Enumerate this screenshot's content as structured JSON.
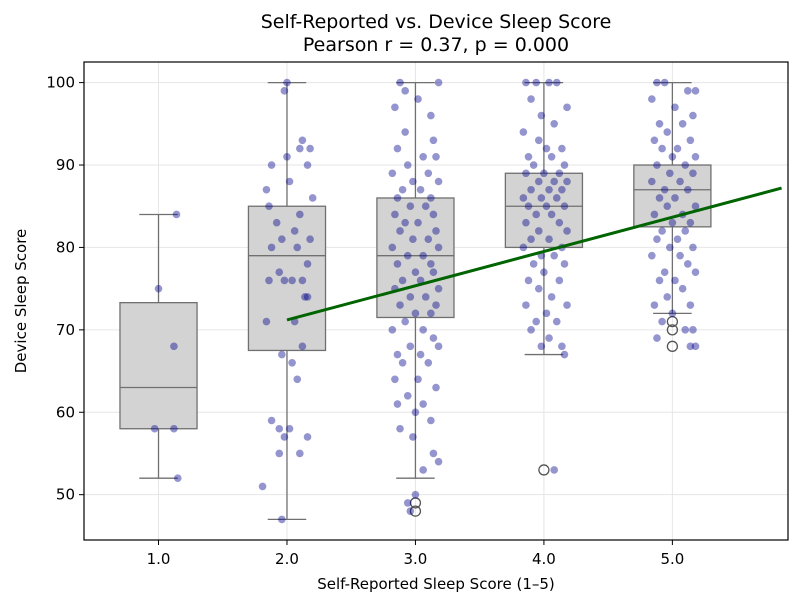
{
  "chart_data": {
    "type": "box",
    "title": "Self-Reported vs. Device Sleep Score",
    "subtitle": "Pearson r = 0.37, p = 0.000",
    "xlabel": "Self-Reported Sleep Score (1–5)",
    "ylabel": "Device Sleep Score",
    "xlim": [
      0.42,
      5.9
    ],
    "ylim": [
      44.5,
      102.5
    ],
    "x_ticks": [
      1,
      2,
      3,
      4,
      5
    ],
    "x_tick_labels": [
      "1.0",
      "2.0",
      "3.0",
      "4.0",
      "5.0"
    ],
    "y_ticks": [
      50,
      60,
      70,
      80,
      90,
      100
    ],
    "y_tick_labels": [
      "50",
      "60",
      "70",
      "80",
      "90",
      "100"
    ],
    "grid": true,
    "colors": {
      "box_fill": "#d3d3d3",
      "box_edge": "#707070",
      "points": "#00008b",
      "trend_line": "#006400"
    },
    "boxes": [
      {
        "category": "1.0",
        "x": 1,
        "whisker_low": 52,
        "q1": 58,
        "median": 63,
        "q3": 73.3,
        "whisker_high": 84,
        "outliers": []
      },
      {
        "category": "2.0",
        "x": 2,
        "whisker_low": 47,
        "q1": 67.5,
        "median": 79,
        "q3": 85,
        "whisker_high": 100,
        "outliers": []
      },
      {
        "category": "3.0",
        "x": 3,
        "whisker_low": 52,
        "q1": 71.5,
        "median": 79,
        "q3": 86,
        "whisker_high": 100,
        "outliers": [
          49,
          48
        ]
      },
      {
        "category": "4.0",
        "x": 4,
        "whisker_low": 67,
        "q1": 80,
        "median": 85,
        "q3": 89,
        "whisker_high": 100,
        "outliers": [
          53
        ]
      },
      {
        "category": "5.0",
        "x": 5,
        "whisker_low": 72,
        "q1": 82.5,
        "median": 87,
        "q3": 90,
        "whisker_high": 100,
        "outliers": [
          71,
          70,
          68
        ]
      }
    ],
    "points": [
      [
        1.14,
        84
      ],
      [
        1.0,
        75
      ],
      [
        1.12,
        68
      ],
      [
        0.97,
        58
      ],
      [
        1.12,
        58
      ],
      [
        1.15,
        52
      ],
      [
        2.0,
        100
      ],
      [
        1.98,
        99
      ],
      [
        2.12,
        93
      ],
      [
        2.18,
        92
      ],
      [
        2.1,
        92
      ],
      [
        2.0,
        91
      ],
      [
        2.16,
        90
      ],
      [
        1.88,
        90
      ],
      [
        2.02,
        88
      ],
      [
        1.84,
        87
      ],
      [
        2.2,
        86
      ],
      [
        1.86,
        85
      ],
      [
        2.1,
        84
      ],
      [
        1.92,
        83
      ],
      [
        2.06,
        82
      ],
      [
        1.96,
        81
      ],
      [
        2.18,
        81
      ],
      [
        1.88,
        80
      ],
      [
        2.08,
        80
      ],
      [
        2.16,
        78
      ],
      [
        1.94,
        77
      ],
      [
        2.04,
        76
      ],
      [
        1.98,
        76
      ],
      [
        1.86,
        76
      ],
      [
        2.12,
        76
      ],
      [
        2.14,
        74
      ],
      [
        2.16,
        74
      ],
      [
        2.06,
        71
      ],
      [
        1.84,
        71
      ],
      [
        2.12,
        68
      ],
      [
        1.96,
        67
      ],
      [
        2.04,
        66
      ],
      [
        2.08,
        64
      ],
      [
        1.88,
        59
      ],
      [
        1.94,
        58
      ],
      [
        2.02,
        58
      ],
      [
        2.16,
        57
      ],
      [
        1.98,
        57
      ],
      [
        2.1,
        55
      ],
      [
        1.94,
        55
      ],
      [
        1.81,
        51
      ],
      [
        1.96,
        47
      ],
      [
        2.88,
        100
      ],
      [
        2.92,
        99
      ],
      [
        3.18,
        100
      ],
      [
        3.02,
        98
      ],
      [
        2.84,
        97
      ],
      [
        3.12,
        96
      ],
      [
        2.92,
        94
      ],
      [
        3.14,
        93
      ],
      [
        2.86,
        92
      ],
      [
        3.06,
        91
      ],
      [
        3.16,
        91
      ],
      [
        2.94,
        90
      ],
      [
        3.1,
        89
      ],
      [
        2.82,
        89
      ],
      [
        2.98,
        88
      ],
      [
        3.18,
        88
      ],
      [
        2.9,
        87
      ],
      [
        3.04,
        87
      ],
      [
        3.12,
        86
      ],
      [
        2.86,
        86
      ],
      [
        2.96,
        85
      ],
      [
        3.08,
        85
      ],
      [
        3.14,
        84
      ],
      [
        2.84,
        84
      ],
      [
        2.92,
        83
      ],
      [
        3.02,
        83
      ],
      [
        3.16,
        82
      ],
      [
        2.88,
        82
      ],
      [
        2.98,
        81
      ],
      [
        3.1,
        81
      ],
      [
        3.18,
        80
      ],
      [
        2.82,
        80
      ],
      [
        2.94,
        79
      ],
      [
        3.06,
        79
      ],
      [
        3.12,
        78
      ],
      [
        2.86,
        78
      ],
      [
        3.0,
        77
      ],
      [
        3.14,
        77
      ],
      [
        2.9,
        76
      ],
      [
        3.04,
        76
      ],
      [
        3.18,
        75
      ],
      [
        2.84,
        75
      ],
      [
        2.96,
        74
      ],
      [
        3.08,
        74
      ],
      [
        3.16,
        73
      ],
      [
        2.88,
        73
      ],
      [
        3.0,
        72
      ],
      [
        3.12,
        72
      ],
      [
        2.92,
        71
      ],
      [
        3.06,
        70
      ],
      [
        2.82,
        70
      ],
      [
        3.14,
        69
      ],
      [
        2.96,
        68
      ],
      [
        3.18,
        68
      ],
      [
        2.86,
        67
      ],
      [
        3.04,
        67
      ],
      [
        2.9,
        66
      ],
      [
        3.1,
        66
      ],
      [
        2.84,
        64
      ],
      [
        3.02,
        64
      ],
      [
        3.16,
        63
      ],
      [
        2.94,
        62
      ],
      [
        3.06,
        61
      ],
      [
        2.86,
        61
      ],
      [
        3.0,
        60
      ],
      [
        3.12,
        59
      ],
      [
        2.88,
        58
      ],
      [
        2.98,
        57
      ],
      [
        3.14,
        55
      ],
      [
        3.06,
        53
      ],
      [
        3.18,
        54
      ],
      [
        2.94,
        49
      ],
      [
        2.96,
        48
      ],
      [
        3.0,
        50
      ],
      [
        3.86,
        100
      ],
      [
        3.94,
        100
      ],
      [
        4.04,
        100
      ],
      [
        4.1,
        100
      ],
      [
        3.9,
        98
      ],
      [
        4.18,
        97
      ],
      [
        3.98,
        96
      ],
      [
        4.08,
        95
      ],
      [
        3.84,
        94
      ],
      [
        3.96,
        93
      ],
      [
        4.14,
        92
      ],
      [
        4.02,
        92
      ],
      [
        3.88,
        91
      ],
      [
        4.06,
        91
      ],
      [
        4.16,
        90
      ],
      [
        3.92,
        90
      ],
      [
        4.0,
        89
      ],
      [
        4.12,
        89
      ],
      [
        3.86,
        89
      ],
      [
        3.96,
        88
      ],
      [
        4.08,
        88
      ],
      [
        4.18,
        88
      ],
      [
        3.9,
        87
      ],
      [
        4.04,
        87
      ],
      [
        4.14,
        87
      ],
      [
        3.84,
        86
      ],
      [
        3.98,
        86
      ],
      [
        4.1,
        86
      ],
      [
        3.88,
        85
      ],
      [
        4.02,
        85
      ],
      [
        4.16,
        85
      ],
      [
        3.94,
        84
      ],
      [
        4.06,
        84
      ],
      [
        3.86,
        83
      ],
      [
        4.12,
        83
      ],
      [
        3.96,
        82
      ],
      [
        4.18,
        82
      ],
      [
        3.9,
        81
      ],
      [
        4.04,
        81
      ],
      [
        4.14,
        80
      ],
      [
        3.84,
        80
      ],
      [
        3.98,
        79
      ],
      [
        4.08,
        79
      ],
      [
        3.92,
        78
      ],
      [
        4.16,
        78
      ],
      [
        4.0,
        77
      ],
      [
        3.88,
        76
      ],
      [
        4.12,
        76
      ],
      [
        3.96,
        75
      ],
      [
        4.06,
        74
      ],
      [
        3.86,
        73
      ],
      [
        4.18,
        73
      ],
      [
        4.02,
        72
      ],
      [
        3.94,
        71
      ],
      [
        4.1,
        71
      ],
      [
        3.9,
        70
      ],
      [
        4.04,
        69
      ],
      [
        4.14,
        68
      ],
      [
        3.98,
        68
      ],
      [
        4.16,
        67
      ],
      [
        4.08,
        53
      ],
      [
        4.88,
        100
      ],
      [
        4.94,
        100
      ],
      [
        5.12,
        99
      ],
      [
        5.18,
        99
      ],
      [
        4.84,
        98
      ],
      [
        5.02,
        97
      ],
      [
        5.16,
        96
      ],
      [
        4.9,
        95
      ],
      [
        5.08,
        95
      ],
      [
        4.96,
        94
      ],
      [
        5.14,
        93
      ],
      [
        4.86,
        93
      ],
      [
        5.04,
        92
      ],
      [
        4.92,
        92
      ],
      [
        5.18,
        91
      ],
      [
        5.0,
        91
      ],
      [
        4.88,
        90
      ],
      [
        5.1,
        90
      ],
      [
        4.98,
        89
      ],
      [
        5.16,
        89
      ],
      [
        4.84,
        88
      ],
      [
        5.06,
        88
      ],
      [
        4.94,
        87
      ],
      [
        5.12,
        87
      ],
      [
        5.02,
        86
      ],
      [
        4.9,
        86
      ],
      [
        5.18,
        85
      ],
      [
        4.96,
        85
      ],
      [
        5.08,
        84
      ],
      [
        4.86,
        84
      ],
      [
        5.14,
        83
      ],
      [
        5.0,
        83
      ],
      [
        4.92,
        82
      ],
      [
        5.1,
        82
      ],
      [
        4.88,
        81
      ],
      [
        5.04,
        81
      ],
      [
        5.16,
        80
      ],
      [
        4.98,
        80
      ],
      [
        4.84,
        79
      ],
      [
        5.06,
        79
      ],
      [
        5.12,
        78
      ],
      [
        4.94,
        77
      ],
      [
        5.18,
        77
      ],
      [
        5.02,
        76
      ],
      [
        4.9,
        76
      ],
      [
        5.08,
        75
      ],
      [
        4.96,
        74
      ],
      [
        5.14,
        73
      ],
      [
        4.86,
        73
      ],
      [
        5.0,
        72
      ],
      [
        4.92,
        71
      ],
      [
        5.1,
        70
      ],
      [
        4.88,
        69
      ],
      [
        5.14,
        68
      ],
      [
        5.18,
        68
      ],
      [
        5.16,
        70
      ]
    ],
    "trend_line": {
      "x": [
        2.0,
        5.85
      ],
      "y": [
        71.2,
        87.2
      ]
    }
  }
}
